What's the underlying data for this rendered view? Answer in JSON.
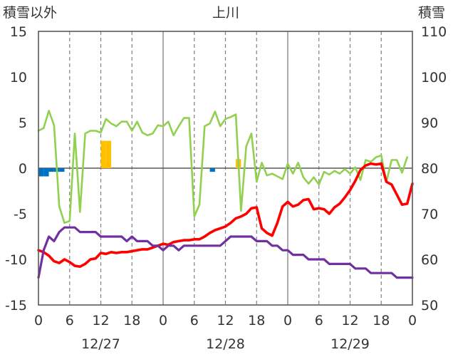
{
  "chart_data": {
    "type": "line",
    "title": "上川",
    "left_axis_label": "積雪以外",
    "right_axis_label": "積雪",
    "left_ylim": [
      -15,
      15
    ],
    "right_ylim": [
      50,
      110
    ],
    "left_ticks": [
      15,
      10,
      5,
      0,
      -5,
      -10,
      -15
    ],
    "right_ticks": [
      110,
      100,
      90,
      80,
      70,
      60,
      50
    ],
    "x_tick_labels": [
      "0",
      "6",
      "12",
      "18",
      "0",
      "6",
      "12",
      "18",
      "0",
      "6",
      "12",
      "18",
      "0"
    ],
    "date_labels": [
      "12/27",
      "12/28",
      "12/29"
    ],
    "x_range_hours": [
      0,
      72
    ],
    "grid": true,
    "series": [
      {
        "axis": "left",
        "color": "#92d050",
        "points": [
          [
            0,
            4.1
          ],
          [
            1,
            4.4
          ],
          [
            2,
            6.3
          ],
          [
            3,
            4.7
          ],
          [
            4,
            -4.2
          ],
          [
            5,
            -6.0
          ],
          [
            6,
            -5.8
          ],
          [
            7,
            3.8
          ],
          [
            8,
            -4.8
          ],
          [
            9,
            3.8
          ],
          [
            10,
            4.1
          ],
          [
            11,
            4.1
          ],
          [
            12,
            3.9
          ],
          [
            13,
            5.4
          ],
          [
            14,
            4.9
          ],
          [
            15,
            4.6
          ],
          [
            16,
            5.1
          ],
          [
            17,
            5.1
          ],
          [
            18,
            4.1
          ],
          [
            19,
            5.1
          ],
          [
            20,
            3.9
          ],
          [
            21,
            3.6
          ],
          [
            22,
            3.8
          ],
          [
            23,
            4.7
          ],
          [
            24,
            4.6
          ],
          [
            25,
            5.1
          ],
          [
            26,
            3.6
          ],
          [
            27,
            4.6
          ],
          [
            28,
            5.5
          ],
          [
            29,
            5.5
          ],
          [
            30,
            -5.3
          ],
          [
            31,
            -4.0
          ],
          [
            32,
            4.6
          ],
          [
            33,
            4.9
          ],
          [
            34,
            6.2
          ],
          [
            35,
            4.6
          ],
          [
            36,
            5.4
          ],
          [
            37,
            5.6
          ],
          [
            38,
            5.9
          ],
          [
            39,
            -4.7
          ],
          [
            40,
            2.4
          ],
          [
            41,
            3.8
          ],
          [
            42,
            -1.5
          ],
          [
            43,
            0.6
          ],
          [
            44,
            -0.8
          ],
          [
            45,
            -0.6
          ],
          [
            46,
            -0.9
          ],
          [
            47,
            -1.2
          ],
          [
            48,
            0.5
          ],
          [
            49,
            -0.6
          ],
          [
            50,
            0.6
          ],
          [
            51,
            -1.0
          ],
          [
            52,
            -1.7
          ],
          [
            53,
            -1.0
          ],
          [
            54,
            -1.8
          ],
          [
            55,
            -0.4
          ],
          [
            56,
            -0.7
          ],
          [
            57,
            -0.3
          ],
          [
            58,
            -0.6
          ],
          [
            59,
            -0.1
          ],
          [
            60,
            -0.6
          ],
          [
            61,
            0.1
          ],
          [
            62,
            -1.3
          ],
          [
            63,
            0.9
          ],
          [
            64,
            0.7
          ],
          [
            65,
            1.2
          ],
          [
            66,
            1.4
          ],
          [
            67,
            -1.5
          ],
          [
            68,
            0.9
          ],
          [
            69,
            0.9
          ],
          [
            70,
            -0.5
          ],
          [
            71,
            1.2
          ]
        ]
      },
      {
        "axis": "left",
        "color": "#ff0000",
        "points": [
          [
            0,
            -9.0
          ],
          [
            1,
            -9.2
          ],
          [
            2,
            -9.6
          ],
          [
            3,
            -10.2
          ],
          [
            4,
            -10.4
          ],
          [
            5,
            -10.0
          ],
          [
            6,
            -10.3
          ],
          [
            7,
            -10.7
          ],
          [
            8,
            -10.8
          ],
          [
            9,
            -10.5
          ],
          [
            10,
            -10.0
          ],
          [
            11,
            -9.9
          ],
          [
            12,
            -9.3
          ],
          [
            13,
            -9.4
          ],
          [
            14,
            -9.2
          ],
          [
            15,
            -9.3
          ],
          [
            16,
            -9.2
          ],
          [
            17,
            -9.2
          ],
          [
            18,
            -9.1
          ],
          [
            19,
            -9.0
          ],
          [
            20,
            -8.9
          ],
          [
            21,
            -8.9
          ],
          [
            22,
            -8.7
          ],
          [
            23,
            -8.5
          ],
          [
            24,
            -8.3
          ],
          [
            25,
            -8.4
          ],
          [
            26,
            -8.1
          ],
          [
            27,
            -8.0
          ],
          [
            28,
            -7.9
          ],
          [
            29,
            -7.9
          ],
          [
            30,
            -7.8
          ],
          [
            31,
            -7.8
          ],
          [
            32,
            -7.5
          ],
          [
            33,
            -7.1
          ],
          [
            34,
            -6.8
          ],
          [
            35,
            -6.6
          ],
          [
            36,
            -6.4
          ],
          [
            37,
            -6.0
          ],
          [
            38,
            -5.5
          ],
          [
            39,
            -5.3
          ],
          [
            40,
            -5.0
          ],
          [
            41,
            -4.4
          ],
          [
            42,
            -4.3
          ],
          [
            43,
            -6.6
          ],
          [
            44,
            -7.1
          ],
          [
            45,
            -7.4
          ],
          [
            46,
            -6.0
          ],
          [
            47,
            -4.2
          ],
          [
            48,
            -3.7
          ],
          [
            49,
            -4.2
          ],
          [
            50,
            -4.0
          ],
          [
            51,
            -3.5
          ],
          [
            52,
            -3.4
          ],
          [
            53,
            -4.5
          ],
          [
            54,
            -4.4
          ],
          [
            55,
            -4.5
          ],
          [
            56,
            -5.0
          ],
          [
            57,
            -4.3
          ],
          [
            58,
            -3.9
          ],
          [
            59,
            -3.2
          ],
          [
            60,
            -2.4
          ],
          [
            61,
            -1.4
          ],
          [
            62,
            -0.2
          ],
          [
            63,
            0.3
          ],
          [
            64,
            0.5
          ],
          [
            65,
            0.4
          ],
          [
            66,
            0.5
          ],
          [
            67,
            -1.5
          ],
          [
            68,
            -1.8
          ],
          [
            69,
            -2.9
          ],
          [
            70,
            -4.0
          ],
          [
            71,
            -3.9
          ],
          [
            72,
            -1.7
          ]
        ]
      },
      {
        "axis": "right",
        "color": "#7030a0",
        "points": [
          [
            0,
            56
          ],
          [
            1,
            62
          ],
          [
            2,
            65
          ],
          [
            3,
            64
          ],
          [
            4,
            66
          ],
          [
            5,
            67
          ],
          [
            6,
            67
          ],
          [
            7,
            67
          ],
          [
            8,
            66
          ],
          [
            9,
            66
          ],
          [
            10,
            66
          ],
          [
            11,
            66
          ],
          [
            12,
            65
          ],
          [
            13,
            65
          ],
          [
            14,
            65
          ],
          [
            15,
            65
          ],
          [
            16,
            65
          ],
          [
            17,
            64
          ],
          [
            18,
            65
          ],
          [
            19,
            64
          ],
          [
            20,
            64
          ],
          [
            21,
            64
          ],
          [
            22,
            63
          ],
          [
            23,
            63
          ],
          [
            24,
            62
          ],
          [
            25,
            63
          ],
          [
            26,
            63
          ],
          [
            27,
            62
          ],
          [
            28,
            63
          ],
          [
            29,
            63
          ],
          [
            30,
            63
          ],
          [
            31,
            63
          ],
          [
            32,
            63
          ],
          [
            33,
            63
          ],
          [
            34,
            63
          ],
          [
            35,
            63
          ],
          [
            36,
            64
          ],
          [
            37,
            65
          ],
          [
            38,
            65
          ],
          [
            39,
            65
          ],
          [
            40,
            65
          ],
          [
            41,
            65
          ],
          [
            42,
            64
          ],
          [
            43,
            64
          ],
          [
            44,
            64
          ],
          [
            45,
            63
          ],
          [
            46,
            63
          ],
          [
            47,
            62
          ],
          [
            48,
            62
          ],
          [
            49,
            61
          ],
          [
            50,
            61
          ],
          [
            51,
            61
          ],
          [
            52,
            60
          ],
          [
            53,
            60
          ],
          [
            54,
            60
          ],
          [
            55,
            60
          ],
          [
            56,
            59
          ],
          [
            57,
            59
          ],
          [
            58,
            59
          ],
          [
            59,
            59
          ],
          [
            60,
            59
          ],
          [
            61,
            58
          ],
          [
            62,
            58
          ],
          [
            63,
            58
          ],
          [
            64,
            57
          ],
          [
            65,
            57
          ],
          [
            66,
            57
          ],
          [
            67,
            57
          ],
          [
            68,
            57
          ],
          [
            69,
            56
          ],
          [
            70,
            56
          ],
          [
            71,
            56
          ],
          [
            72,
            56
          ]
        ]
      }
    ],
    "bars": [
      {
        "color": "#0070c0",
        "bars": [
          [
            0,
            -0.9
          ],
          [
            1,
            -0.9
          ],
          [
            2,
            -0.4
          ],
          [
            3,
            -0.4
          ],
          [
            4,
            -0.4
          ],
          [
            33,
            -0.4
          ]
        ]
      },
      {
        "color": "#ffc000",
        "bars": [
          [
            12,
            3.0
          ],
          [
            13,
            3.0
          ],
          [
            38,
            1.0
          ]
        ]
      }
    ]
  }
}
